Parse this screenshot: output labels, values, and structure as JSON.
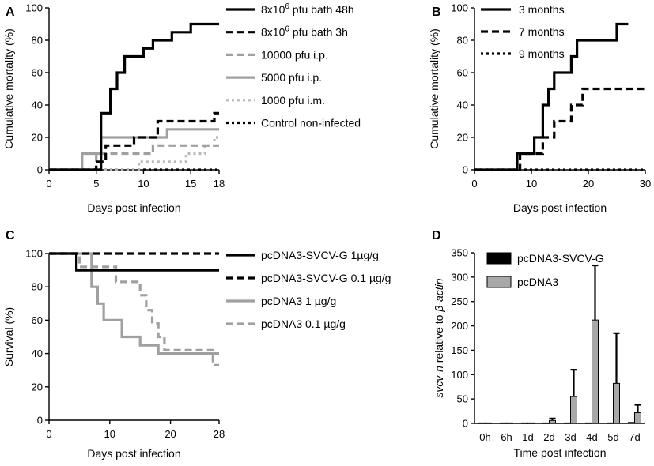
{
  "colors": {
    "black": "#000000",
    "gray": "#a0a0a0",
    "light_gray": "#b8b8b8"
  },
  "chart_data": [
    {
      "panel": "A",
      "type": "line",
      "xlabel": "Days post infection",
      "ylabel": "Cumulative mortality (%)",
      "xlim": [
        0,
        18
      ],
      "ylim": [
        0,
        100
      ],
      "xticks": [
        0,
        5,
        10,
        15,
        18
      ],
      "yticks": [
        0,
        20,
        40,
        60,
        80,
        100
      ],
      "legend_position": "top-right",
      "series": [
        {
          "name": "8x10^6 pfu bath 48h",
          "label_main": "8x10",
          "label_sup": "6",
          "label_tail": " pfu bath 48h",
          "color": "#000000",
          "dash": "solid",
          "x": [
            0,
            5.5,
            5.5,
            6.5,
            6.5,
            7.2,
            7.2,
            8,
            8,
            9,
            9,
            10,
            10,
            11,
            11,
            12,
            12,
            13,
            13,
            14,
            14,
            15,
            15,
            16,
            16,
            18
          ],
          "y": [
            0,
            0,
            35,
            35,
            50,
            50,
            60,
            60,
            70,
            70,
            70,
            70,
            75,
            75,
            80,
            80,
            80,
            80,
            85,
            85,
            85,
            85,
            90,
            90,
            90,
            90
          ]
        },
        {
          "name": "8x10^6 pfu bath 3h",
          "label_main": "8x10",
          "label_sup": "6",
          "label_tail": " pfu bath 3h",
          "color": "#000000",
          "dash": "dash",
          "x": [
            0,
            5,
            5,
            6,
            6,
            9,
            9,
            11.5,
            11.5,
            14,
            14,
            15.5,
            15.5,
            17.5,
            17.5,
            18
          ],
          "y": [
            0,
            0,
            5,
            5,
            15,
            15,
            20,
            20,
            30,
            30,
            30,
            30,
            30,
            30,
            35,
            35
          ]
        },
        {
          "name": "10000 pfu i.p.",
          "label_main": "10000 pfu i.p.",
          "label_sup": "",
          "label_tail": "",
          "color": "#a0a0a0",
          "dash": "dash",
          "x": [
            0,
            5,
            5,
            11,
            11,
            12.5,
            12.5,
            14,
            14,
            18
          ],
          "y": [
            0,
            0,
            10,
            10,
            15,
            15,
            15,
            15,
            15,
            15
          ]
        },
        {
          "name": "5000 pfu i.p.",
          "label_main": "5000 pfu i.p.",
          "label_sup": "",
          "label_tail": "",
          "color": "#a0a0a0",
          "dash": "solid",
          "x": [
            0,
            3.5,
            3.5,
            5.5,
            5.5,
            12.5,
            12.5,
            18
          ],
          "y": [
            0,
            0,
            10,
            10,
            20,
            20,
            25,
            25
          ]
        },
        {
          "name": "1000 pfu i.m.",
          "label_main": "1000 pfu i.m.",
          "label_sup": "",
          "label_tail": "",
          "color": "#b8b8b8",
          "dash": "dot",
          "x": [
            0,
            9.5,
            9.5,
            11.5,
            11.5,
            14.5,
            14.5,
            16.5,
            16.5,
            17.5,
            17.5,
            18
          ],
          "y": [
            0,
            0,
            5,
            5,
            5,
            5,
            10,
            10,
            15,
            15,
            20,
            20
          ]
        },
        {
          "name": "Control non-infected",
          "label_main": "Control non-infected",
          "label_sup": "",
          "label_tail": "",
          "color": "#000000",
          "dash": "dot",
          "x": [
            0,
            18
          ],
          "y": [
            0,
            0
          ]
        }
      ]
    },
    {
      "panel": "B",
      "type": "line",
      "xlabel": "Days post infection",
      "ylabel": "Cumulative mortality (%)",
      "xlim": [
        0,
        30
      ],
      "ylim": [
        0,
        100
      ],
      "xticks": [
        0,
        10,
        20,
        30
      ],
      "yticks": [
        0,
        20,
        40,
        60,
        80,
        100
      ],
      "legend_position": "top-left",
      "series": [
        {
          "name": "3 months",
          "label_main": "3 months",
          "label_sup": "",
          "label_tail": "",
          "color": "#000000",
          "dash": "solid",
          "x": [
            0,
            7.5,
            7.5,
            10.5,
            10.5,
            12,
            12,
            13,
            13,
            14,
            14,
            17,
            17,
            18,
            18,
            25,
            25,
            27
          ],
          "y": [
            0,
            0,
            10,
            10,
            20,
            20,
            40,
            40,
            50,
            50,
            60,
            60,
            70,
            70,
            80,
            80,
            90,
            90
          ]
        },
        {
          "name": "7 months",
          "label_main": "7 months",
          "label_sup": "",
          "label_tail": "",
          "color": "#000000",
          "dash": "dash",
          "x": [
            0,
            8,
            8,
            12,
            12,
            13,
            13,
            14,
            14,
            17,
            17,
            18,
            18,
            19,
            19,
            30
          ],
          "y": [
            0,
            0,
            10,
            10,
            20,
            20,
            20,
            20,
            30,
            30,
            40,
            40,
            40,
            40,
            50,
            50
          ]
        },
        {
          "name": "9 months",
          "label_main": "9 months",
          "label_sup": "",
          "label_tail": "",
          "color": "#000000",
          "dash": "dot",
          "x": [
            0,
            30
          ],
          "y": [
            0,
            0
          ]
        }
      ]
    },
    {
      "panel": "C",
      "type": "line",
      "xlabel": "Days post infection",
      "ylabel": "Survival (%)",
      "xlim": [
        0,
        28
      ],
      "ylim": [
        0,
        100
      ],
      "xticks": [
        0,
        10,
        20,
        28
      ],
      "yticks": [
        0,
        20,
        40,
        60,
        80,
        100
      ],
      "legend_position": "top-right",
      "series": [
        {
          "name": "pcDNA3-SVCV-G 1 µg/g",
          "label_main": "pcDNA3-SVCV-G 1µg/g",
          "label_sup": "",
          "label_tail": "",
          "color": "#000000",
          "dash": "solid",
          "x": [
            0,
            4.5,
            4.5,
            28
          ],
          "y": [
            100,
            100,
            90,
            90
          ]
        },
        {
          "name": "pcDNA3-SVCV-G 0.1 µg/g",
          "label_main": "pcDNA3-SVCV-G 0.1 µg/g",
          "label_sup": "",
          "label_tail": "",
          "color": "#000000",
          "dash": "dash",
          "x": [
            0,
            28
          ],
          "y": [
            100,
            100
          ]
        },
        {
          "name": "pcDNA3 1 µg/g",
          "label_main": "pcDNA3 1 µg/g",
          "label_sup": "",
          "label_tail": "",
          "color": "#a0a0a0",
          "dash": "solid",
          "x": [
            0,
            7,
            7,
            8,
            8,
            9,
            9,
            12,
            12,
            15,
            15,
            18,
            18,
            28
          ],
          "y": [
            100,
            100,
            80,
            80,
            70,
            70,
            60,
            60,
            50,
            50,
            45,
            45,
            40,
            40
          ]
        },
        {
          "name": "pcDNA3 0.1 µg/g",
          "label_main": "pcDNA3 0.1 µg/g",
          "label_sup": "",
          "label_tail": "",
          "color": "#a0a0a0",
          "dash": "dash",
          "x": [
            0,
            5,
            5,
            11,
            11,
            15,
            15,
            16,
            16,
            17,
            17,
            18,
            18,
            19,
            19,
            27,
            27,
            28
          ],
          "y": [
            100,
            100,
            92,
            92,
            83,
            83,
            75,
            75,
            66,
            66,
            58,
            58,
            50,
            50,
            42,
            42,
            33,
            33
          ]
        }
      ]
    },
    {
      "panel": "D",
      "type": "bar",
      "xlabel": "Time post infection",
      "ylabel_italic": "svcv-n",
      "ylabel_mid": " relative to ",
      "ylabel_italic2": "β-actin",
      "categories": [
        "0h",
        "6h",
        "1d",
        "2d",
        "3d",
        "4d",
        "5d",
        "7d"
      ],
      "ylim": [
        0,
        350
      ],
      "yticks": [
        0,
        50,
        100,
        150,
        200,
        250,
        300,
        350
      ],
      "legend_position": "top-left",
      "series": [
        {
          "name": "pcDNA3-SVCV-G",
          "color": "#000000",
          "values": [
            1,
            1,
            1,
            1,
            1,
            1,
            1,
            2
          ],
          "errors": [
            0,
            0,
            0,
            0,
            0,
            0,
            0,
            0
          ]
        },
        {
          "name": "pcDNA3",
          "color": "#a8a8a8",
          "values": [
            1,
            1,
            1,
            6,
            55,
            212,
            82,
            22
          ],
          "errors": [
            0,
            0,
            0,
            4,
            55,
            112,
            103,
            16
          ]
        }
      ]
    }
  ]
}
